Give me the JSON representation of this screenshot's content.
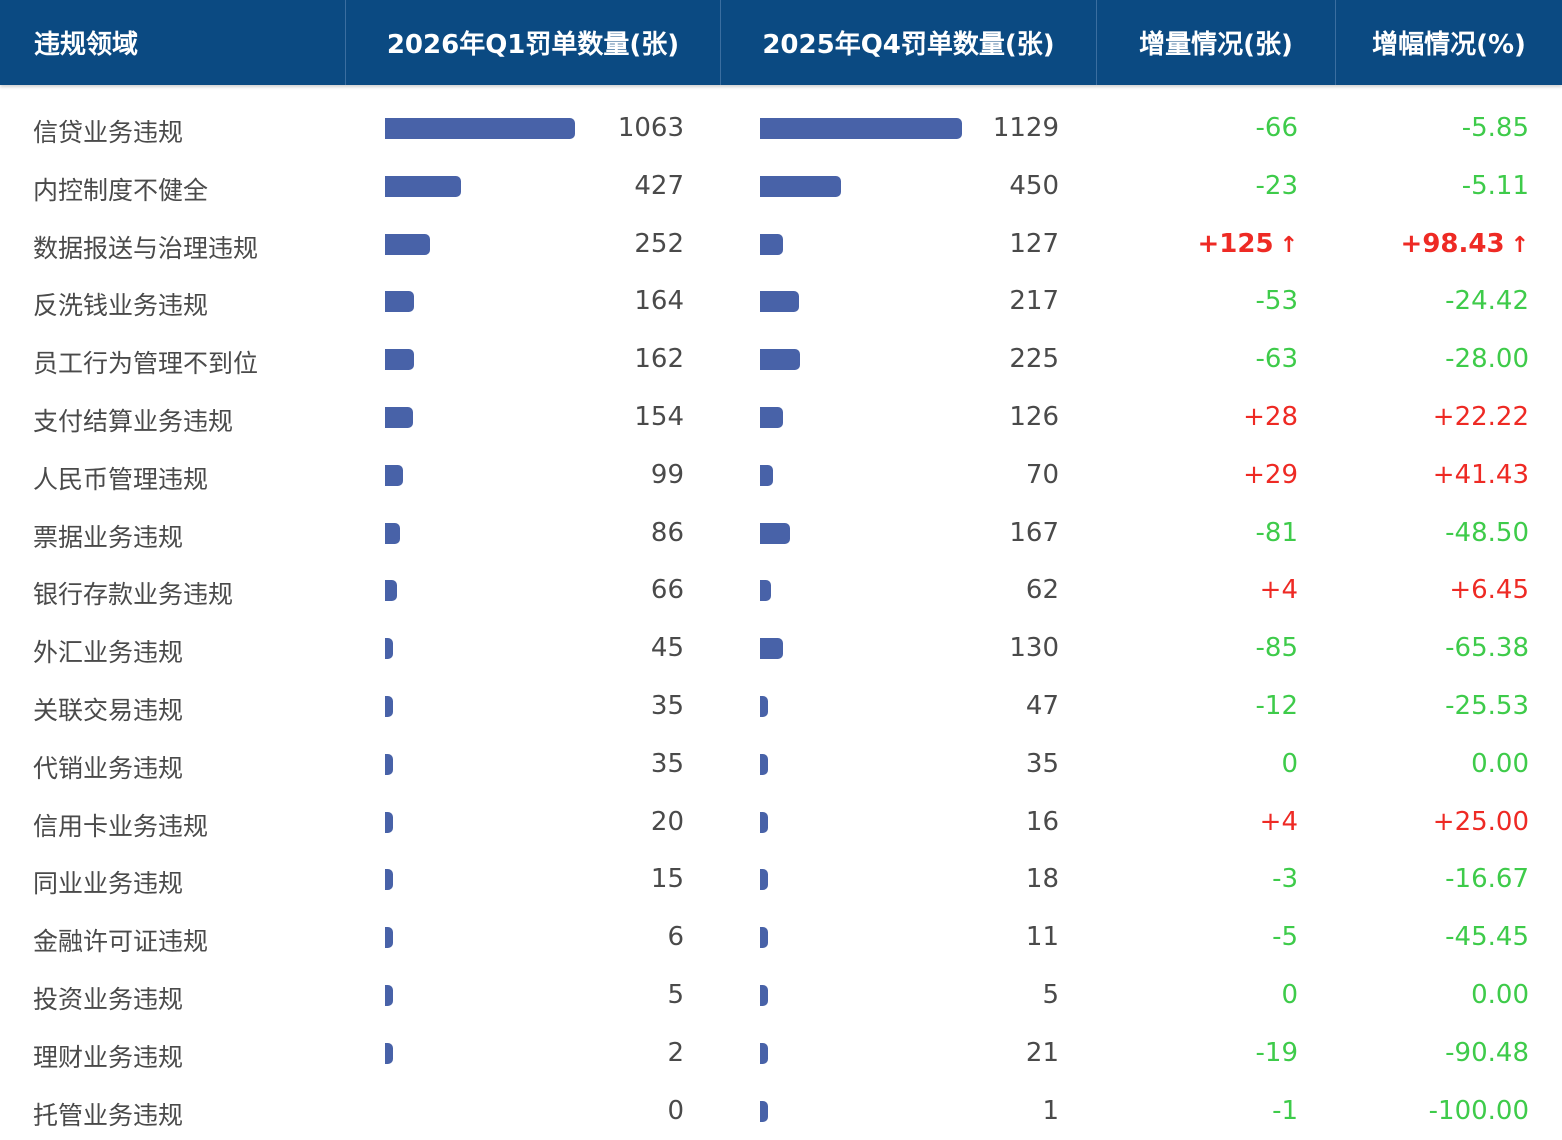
{
  "header": {
    "col_domain": "违规领域",
    "col_q1": "2026年Q1罚单数量(张)",
    "col_q4": "2025年Q4罚单数量(张)",
    "col_delta": "增量情况(张)",
    "col_pct": "增幅情况(%)"
  },
  "colors": {
    "bar": "#4862a8",
    "header_bg": "#0b4a82",
    "increase": "#ee2a24",
    "decrease": "#3ecb4a"
  },
  "chart_data": {
    "type": "table",
    "columns": [
      "违规领域",
      "2026年Q1罚单数量(张)",
      "2025年Q4罚单数量(张)",
      "增量情况(张)",
      "增幅情况(%)"
    ],
    "bar_scale_max": 1129,
    "highlight_icon": "up-arrow-icon",
    "rows": [
      {
        "name": "信贷业务违规",
        "q1": 1063,
        "q4": 1129,
        "delta": "-66",
        "pct": "-5.85",
        "trend": "down",
        "highlight": false
      },
      {
        "name": "内控制度不健全",
        "q1": 427,
        "q4": 450,
        "delta": "-23",
        "pct": "-5.11",
        "trend": "down",
        "highlight": false
      },
      {
        "name": "数据报送与治理违规",
        "q1": 252,
        "q4": 127,
        "delta": "+125",
        "pct": "+98.43",
        "trend": "up",
        "highlight": true
      },
      {
        "name": "反洗钱业务违规",
        "q1": 164,
        "q4": 217,
        "delta": "-53",
        "pct": "-24.42",
        "trend": "down",
        "highlight": false
      },
      {
        "name": "员工行为管理不到位",
        "q1": 162,
        "q4": 225,
        "delta": "-63",
        "pct": "-28.00",
        "trend": "down",
        "highlight": false
      },
      {
        "name": "支付结算业务违规",
        "q1": 154,
        "q4": 126,
        "delta": "+28",
        "pct": "+22.22",
        "trend": "up",
        "highlight": false
      },
      {
        "name": "人民币管理违规",
        "q1": 99,
        "q4": 70,
        "delta": "+29",
        "pct": "+41.43",
        "trend": "up",
        "highlight": false
      },
      {
        "name": "票据业务违规",
        "q1": 86,
        "q4": 167,
        "delta": "-81",
        "pct": "-48.50",
        "trend": "down",
        "highlight": false
      },
      {
        "name": "银行存款业务违规",
        "q1": 66,
        "q4": 62,
        "delta": "+4",
        "pct": "+6.45",
        "trend": "up",
        "highlight": false
      },
      {
        "name": "外汇业务违规",
        "q1": 45,
        "q4": 130,
        "delta": "-85",
        "pct": "-65.38",
        "trend": "down",
        "highlight": false
      },
      {
        "name": "关联交易违规",
        "q1": 35,
        "q4": 47,
        "delta": "-12",
        "pct": "-25.53",
        "trend": "down",
        "highlight": false
      },
      {
        "name": "代销业务违规",
        "q1": 35,
        "q4": 35,
        "delta": "0",
        "pct": "0.00",
        "trend": "zero",
        "highlight": false
      },
      {
        "name": "信用卡业务违规",
        "q1": 20,
        "q4": 16,
        "delta": "+4",
        "pct": "+25.00",
        "trend": "up",
        "highlight": false
      },
      {
        "name": "同业业务违规",
        "q1": 15,
        "q4": 18,
        "delta": "-3",
        "pct": "-16.67",
        "trend": "down",
        "highlight": false
      },
      {
        "name": "金融许可证违规",
        "q1": 6,
        "q4": 11,
        "delta": "-5",
        "pct": "-45.45",
        "trend": "down",
        "highlight": false
      },
      {
        "name": "投资业务违规",
        "q1": 5,
        "q4": 5,
        "delta": "0",
        "pct": "0.00",
        "trend": "zero",
        "highlight": false
      },
      {
        "name": "理财业务违规",
        "q1": 2,
        "q4": 21,
        "delta": "-19",
        "pct": "-90.48",
        "trend": "down",
        "highlight": false
      },
      {
        "name": "托管业务违规",
        "q1": 0,
        "q4": 1,
        "delta": "-1",
        "pct": "-100.00",
        "trend": "down",
        "highlight": false
      }
    ]
  }
}
